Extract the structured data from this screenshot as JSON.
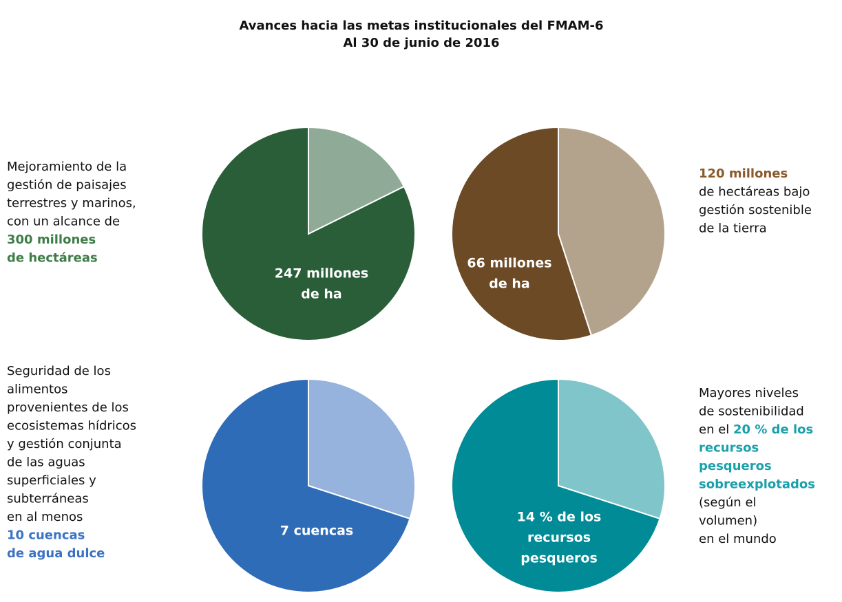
{
  "chart_data": [
    {
      "type": "pie",
      "title": "Avances hacia las metas institucionales del FMAM-6",
      "subtitle": "Al 30 de junio de 2016",
      "values": [
        53,
        247
      ],
      "colors": [
        "#8fab97",
        "#2a5e38"
      ],
      "value_labels": [
        null,
        [
          "247 millones",
          "de ha"
        ]
      ],
      "description": [
        [
          {
            "text": "Mejoramiento de la"
          }
        ],
        [
          {
            "text": "gestión de paisajes"
          }
        ],
        [
          {
            "text": "terrestres y marinos,"
          }
        ],
        [
          {
            "text": "con un alcance de"
          }
        ],
        [
          {
            "text": "300 millones",
            "color": "#3f7d48"
          }
        ],
        [
          {
            "text": "de hectáreas",
            "color": "#3f7d48"
          }
        ]
      ]
    },
    {
      "type": "pie",
      "values": [
        54,
        66
      ],
      "colors": [
        "#b3a38c",
        "#6b4a25"
      ],
      "value_labels": [
        null,
        [
          "66 millones",
          "de ha"
        ]
      ],
      "description": [
        [
          {
            "text": "120 millones",
            "color": "#8a5a2b"
          }
        ],
        [
          {
            "text": "de hectáreas bajo"
          }
        ],
        [
          {
            "text": "gestión sostenible"
          }
        ],
        [
          {
            "text": "de la tierra"
          }
        ]
      ]
    },
    {
      "type": "pie",
      "values": [
        3,
        7
      ],
      "colors": [
        "#95b3dc",
        "#2f6cb8"
      ],
      "value_labels": [
        null,
        [
          "7 cuencas"
        ]
      ],
      "description": [
        [
          {
            "text": "Seguridad de los"
          }
        ],
        [
          {
            "text": "alimentos"
          }
        ],
        [
          {
            "text": "provenientes de los"
          }
        ],
        [
          {
            "text": "ecosistemas hídricos"
          }
        ],
        [
          {
            "text": "y gestión conjunta"
          }
        ],
        [
          {
            "text": "de las aguas"
          }
        ],
        [
          {
            "text": "superficiales y"
          }
        ],
        [
          {
            "text": "subterráneas"
          }
        ],
        [
          {
            "text": "en al menos"
          }
        ],
        [
          {
            "text": "10 cuencas",
            "color": "#3b73c4"
          }
        ],
        [
          {
            "text": "de agua dulce",
            "color": "#3b73c4"
          }
        ]
      ]
    },
    {
      "type": "pie",
      "values": [
        6,
        14
      ],
      "colors": [
        "#7fc5c9",
        "#008b96"
      ],
      "value_labels": [
        null,
        [
          "14 % de los",
          "recursos",
          "pesqueros"
        ]
      ],
      "description": [
        [
          {
            "text": "Mayores niveles"
          }
        ],
        [
          {
            "text": "de sostenibilidad"
          }
        ],
        [
          {
            "text": "en el "
          },
          {
            "text": "20 % de los",
            "color": "#1aa0aa"
          }
        ],
        [
          {
            "text": "recursos",
            "color": "#1aa0aa"
          }
        ],
        [
          {
            "text": "pesqueros",
            "color": "#1aa0aa"
          }
        ],
        [
          {
            "text": "sobreexplotados",
            "color": "#1aa0aa"
          }
        ],
        [
          {
            "text": "(según el"
          }
        ],
        [
          {
            "text": "volumen)"
          }
        ],
        [
          {
            "text": "en el mundo"
          }
        ]
      ]
    }
  ]
}
